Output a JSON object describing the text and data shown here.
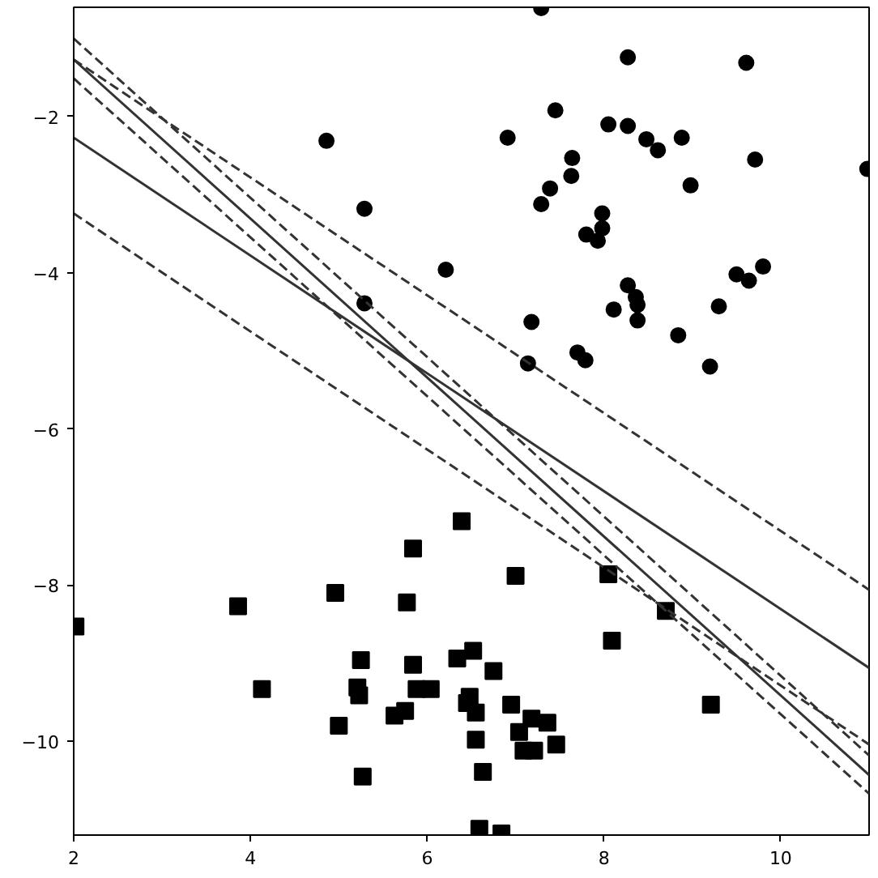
{
  "chart_data": {
    "type": "scatter",
    "xlim": [
      2,
      11
    ],
    "ylim": [
      -11.2,
      -0.6
    ],
    "xticks": [
      2,
      4,
      6,
      8,
      10
    ],
    "yticks": [
      {
        "value": -2,
        "label": "−2"
      },
      {
        "value": -4,
        "label": "−4"
      },
      {
        "value": -6,
        "label": "−6"
      },
      {
        "value": -8,
        "label": "−8"
      },
      {
        "value": -10,
        "label": "−10"
      }
    ],
    "grid": false,
    "series": [
      {
        "marker": "circle",
        "color": "#000000",
        "x": [
          7.29,
          8.27,
          9.61,
          4.86,
          6.91,
          7.45,
          8.05,
          8.27,
          8.48,
          8.61,
          8.88,
          9.71,
          10.98,
          7.64,
          7.63,
          7.39,
          7.29,
          8.98,
          5.29,
          7.98,
          7.98,
          7.8,
          7.93,
          6.21,
          5.29,
          9.5,
          9.64,
          9.8,
          8.27,
          8.36,
          8.38,
          8.11,
          8.38,
          9.3,
          7.18,
          8.84,
          7.7,
          7.79,
          7.14,
          9.2
        ],
        "values": [
          -0.61,
          -1.24,
          -1.31,
          -2.31,
          -2.27,
          -1.92,
          -2.1,
          -2.12,
          -2.29,
          -2.43,
          -2.27,
          -2.55,
          -2.67,
          -2.53,
          -2.76,
          -2.92,
          -3.12,
          -2.88,
          -3.18,
          -3.24,
          -3.43,
          -3.51,
          -3.59,
          -3.96,
          -4.39,
          -4.02,
          -4.1,
          -3.92,
          -4.16,
          -4.31,
          -4.41,
          -4.47,
          -4.61,
          -4.43,
          -4.63,
          -4.8,
          -5.02,
          -5.12,
          -5.16,
          -5.2
        ]
      },
      {
        "marker": "square",
        "color": "#000000",
        "x": [
          2.02,
          3.86,
          4.96,
          4.13,
          5.25,
          5.21,
          5.23,
          5.0,
          5.27,
          5.77,
          5.84,
          5.84,
          5.63,
          5.75,
          5.88,
          6.04,
          6.39,
          7.0,
          8.05,
          8.7,
          8.09,
          9.21,
          6.34,
          6.52,
          6.75,
          6.48,
          6.45,
          6.55,
          6.95,
          7.18,
          7.36,
          7.04,
          6.55,
          7.46,
          7.09,
          7.21,
          6.63,
          6.59,
          6.84
        ],
        "values": [
          -8.53,
          -8.27,
          -8.1,
          -9.33,
          -8.96,
          -9.31,
          -9.41,
          -9.8,
          -10.45,
          -8.22,
          -7.53,
          -9.02,
          -9.67,
          -9.61,
          -9.33,
          -9.33,
          -7.18,
          -7.88,
          -7.86,
          -8.33,
          -8.71,
          -9.53,
          -8.94,
          -8.84,
          -9.1,
          -9.43,
          -9.51,
          -9.63,
          -9.53,
          -9.71,
          -9.76,
          -9.88,
          -9.98,
          -10.04,
          -10.12,
          -10.12,
          -10.39,
          -11.12,
          -11.18
        ]
      },
      {
        "type": "line",
        "line_style": "solid",
        "color": "#333333",
        "x": [
          2,
          11
        ],
        "values": [
          -1.27,
          -10.43
        ]
      },
      {
        "type": "line",
        "line_style": "dashed",
        "color": "#333333",
        "x": [
          2,
          11
        ],
        "values": [
          -1.0,
          -10.18
        ]
      },
      {
        "type": "line",
        "line_style": "dashed",
        "color": "#333333",
        "x": [
          2,
          11
        ],
        "values": [
          -1.51,
          -10.67
        ]
      },
      {
        "type": "line",
        "line_style": "solid",
        "color": "#333333",
        "x": [
          2,
          11
        ],
        "values": [
          -2.27,
          -9.06
        ]
      },
      {
        "type": "line",
        "line_style": "dashed",
        "color": "#333333",
        "x": [
          2,
          11
        ],
        "values": [
          -1.27,
          -8.06
        ]
      },
      {
        "type": "line",
        "line_style": "dashed",
        "color": "#333333",
        "x": [
          2,
          11
        ],
        "values": [
          -3.24,
          -10.04
        ]
      }
    ]
  }
}
